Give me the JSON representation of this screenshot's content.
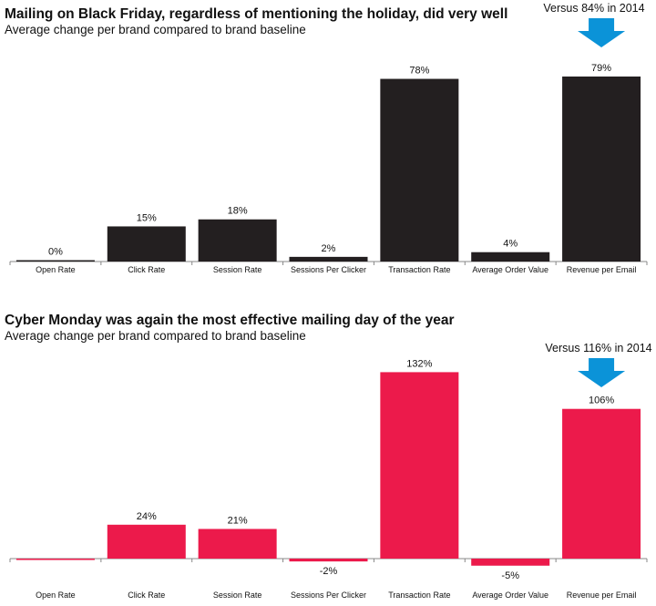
{
  "charts": [
    {
      "title": "Mailing on Black Friday, regardless of mentioning the holiday, did very well",
      "subtitle": "Average change per brand compared to brand baseline",
      "callout": "Versus 84% in 2014",
      "colors": {
        "bar": "#231f20",
        "arrow": "#0b93d8",
        "axis": "#888888"
      }
    },
    {
      "title": "Cyber Monday was again the most effective mailing day of the year",
      "subtitle": "Average change per brand compared to brand baseline",
      "callout": "Versus 116% in 2014",
      "colors": {
        "bar": "#ec1a4b",
        "arrow": "#0b93d8",
        "axis": "#888888"
      }
    }
  ],
  "chart_data": [
    {
      "type": "bar",
      "title": "Mailing on Black Friday, regardless of mentioning the holiday, did very well",
      "subtitle": "Average change per brand compared to brand baseline",
      "categories": [
        "Open Rate",
        "Click Rate",
        "Session Rate",
        "Sessions Per Clicker",
        "Transaction Rate",
        "Average Order Value",
        "Revenue per Email"
      ],
      "values": [
        0,
        15,
        18,
        2,
        78,
        4,
        79
      ],
      "labels": [
        "0%",
        "15%",
        "18%",
        "2%",
        "78%",
        "4%",
        "79%"
      ],
      "unit": "%",
      "ylim": [
        0,
        90
      ],
      "annotations": [
        {
          "category": "Revenue per Email",
          "text": "Versus 84% in 2014",
          "marker": "down-arrow"
        }
      ],
      "grid": false,
      "legend": "none"
    },
    {
      "type": "bar",
      "title": "Cyber Monday was again the most effective mailing day of the year",
      "subtitle": "Average change per brand compared to brand baseline",
      "categories": [
        "Open Rate",
        "Click Rate",
        "Session Rate",
        "Sessions Per Clicker",
        "Transaction Rate",
        "Average Order Value",
        "Revenue per Email"
      ],
      "values": [
        -0.5,
        24,
        21,
        -2,
        132,
        -5,
        106
      ],
      "labels": [
        "",
        "24%",
        "21%",
        "-2%",
        "132%",
        "-5%",
        "106%"
      ],
      "unit": "%",
      "ylim": [
        -8,
        145
      ],
      "annotations": [
        {
          "category": "Revenue per Email",
          "text": "Versus 116% in 2014",
          "marker": "down-arrow"
        }
      ],
      "grid": false,
      "legend": "none"
    }
  ]
}
